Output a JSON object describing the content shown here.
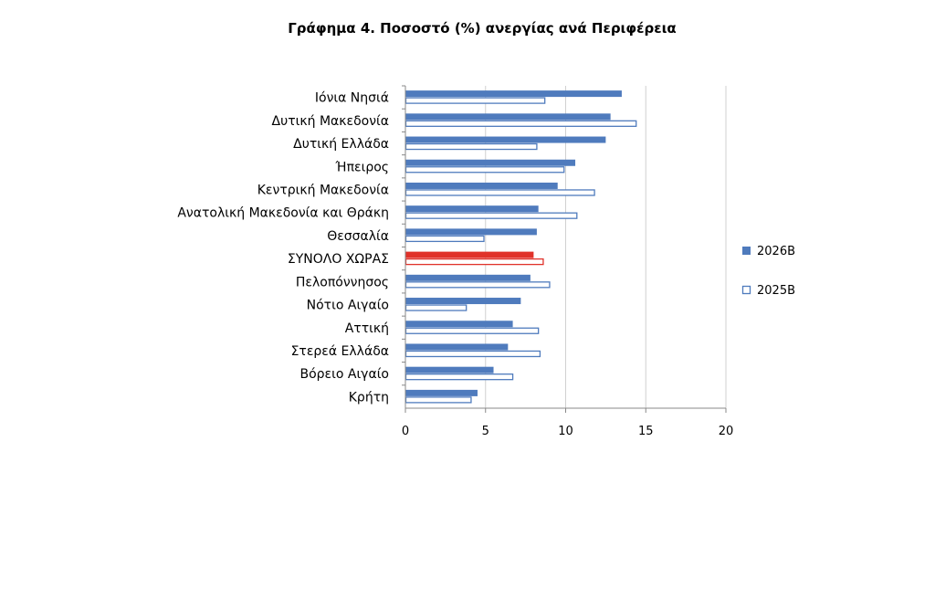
{
  "chart_data": {
    "type": "bar",
    "orientation": "horizontal",
    "title": "Γράφημα 4. Ποσοστό (%) ανεργίας ανά Περιφέρεια",
    "categories": [
      "Ιόνια Νησιά",
      "Δυτική Μακεδονία",
      "Δυτική Ελλάδα",
      "Ήπειρος",
      "Κεντρική Μακεδονία",
      "Ανατολική Μακεδονία και Θράκη",
      "Θεσσαλία",
      "ΣΥΝΟΛΟ ΧΩΡΑΣ",
      "Πελοπόννησος",
      "Νότιο Αιγαίο",
      "Αττική",
      "Στερεά Ελλάδα",
      "Βόρειο Αιγαίο",
      "Κρήτη"
    ],
    "highlight_category": "ΣΥΝΟΛΟ ΧΩΡΑΣ",
    "series": [
      {
        "name": "2026Β",
        "style": "filled",
        "values": [
          13.5,
          12.8,
          12.5,
          10.6,
          9.5,
          8.3,
          8.2,
          8.0,
          7.8,
          7.2,
          6.7,
          6.4,
          5.5,
          4.5
        ]
      },
      {
        "name": "2025Β",
        "style": "outline",
        "values": [
          8.7,
          14.4,
          8.2,
          9.9,
          11.8,
          10.7,
          4.9,
          8.6,
          9.0,
          3.8,
          8.3,
          8.4,
          6.7,
          4.1
        ]
      }
    ],
    "xlim": [
      0,
      20
    ],
    "xticks": [
      0,
      5,
      10,
      15,
      20
    ],
    "grid": true,
    "legend_position": "right",
    "colors": {
      "series_2026": "#4F7BBD",
      "series_2025_outline": "#4F7BBD",
      "highlight": "#E0322A",
      "grid": "#D0D0D0",
      "axis": "#888888"
    }
  }
}
